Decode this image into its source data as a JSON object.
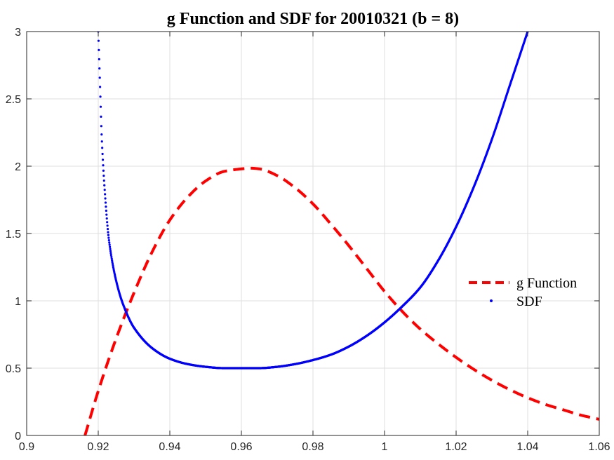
{
  "chart_data": {
    "type": "line",
    "title": "g Function and SDF for 20010321 (b = 8)",
    "xlabel": "",
    "ylabel": "",
    "xlim": [
      0.9,
      1.06
    ],
    "ylim": [
      0,
      3
    ],
    "grid": true,
    "legend_position": "right",
    "x_ticks": [
      "0.9",
      "0.92",
      "0.94",
      "0.96",
      "0.98",
      "1",
      "1.02",
      "1.04",
      "1.06"
    ],
    "y_ticks": [
      "0",
      "0.5",
      "1",
      "1.5",
      "2",
      "2.5",
      "3"
    ],
    "x_tick_values": [
      0.9,
      0.92,
      0.94,
      0.96,
      0.98,
      1.0,
      1.02,
      1.04,
      1.06
    ],
    "y_tick_values": [
      0,
      0.5,
      1,
      1.5,
      2,
      2.5,
      3
    ],
    "series": [
      {
        "name": "g Function",
        "style": "dashed",
        "color": "#ff0000",
        "x": [
          0.9163,
          0.92,
          0.925,
          0.93,
          0.935,
          0.94,
          0.945,
          0.95,
          0.955,
          0.96,
          0.9625,
          0.965,
          0.97,
          0.975,
          0.98,
          0.985,
          0.99,
          0.995,
          1.0,
          1.005,
          1.01,
          1.015,
          1.02,
          1.025,
          1.03,
          1.035,
          1.04,
          1.045,
          1.05,
          1.055,
          1.06
        ],
        "y": [
          0.0,
          0.33,
          0.72,
          1.06,
          1.36,
          1.6,
          1.77,
          1.89,
          1.96,
          1.98,
          1.985,
          1.98,
          1.93,
          1.84,
          1.72,
          1.57,
          1.41,
          1.24,
          1.07,
          0.92,
          0.79,
          0.68,
          0.58,
          0.49,
          0.41,
          0.34,
          0.28,
          0.23,
          0.19,
          0.15,
          0.12
        ]
      },
      {
        "name": "SDF",
        "style": "dotted",
        "color": "#0000ff",
        "x": [
          0.92,
          0.9205,
          0.921,
          0.922,
          0.923,
          0.925,
          0.927,
          0.93,
          0.935,
          0.94,
          0.945,
          0.95,
          0.955,
          0.96,
          0.965,
          0.97,
          0.975,
          0.98,
          0.985,
          0.99,
          0.995,
          1.0,
          1.005,
          1.01,
          1.015,
          1.02,
          1.025,
          1.03,
          1.035,
          1.04
        ],
        "y": [
          3.0,
          2.6,
          2.2,
          1.75,
          1.45,
          1.15,
          0.97,
          0.8,
          0.65,
          0.57,
          0.53,
          0.51,
          0.5,
          0.5,
          0.5,
          0.51,
          0.53,
          0.56,
          0.6,
          0.66,
          0.74,
          0.84,
          0.96,
          1.1,
          1.3,
          1.55,
          1.85,
          2.2,
          2.6,
          3.0
        ]
      }
    ]
  }
}
